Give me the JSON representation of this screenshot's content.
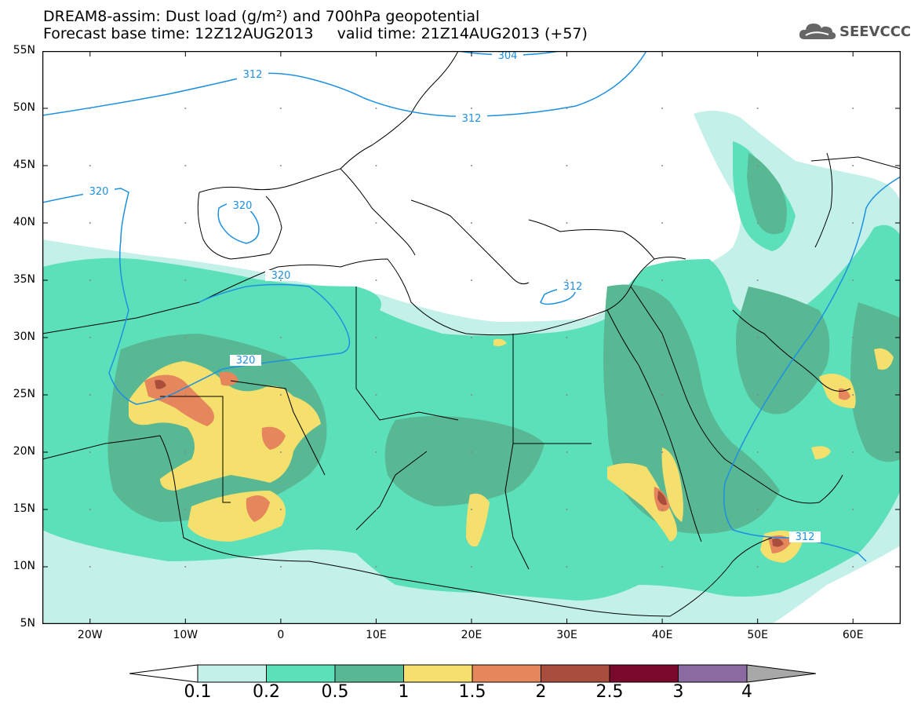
{
  "title": {
    "line1": "DREAM8-assim: Dust load (g/m²) and 700hPa geopotential",
    "line2": "Forecast base time: 12Z12AUG2013     valid time: 21Z14AUG2013 (+57)"
  },
  "logo": {
    "text": "SEEVCCC",
    "icon": "cloud-logo-icon"
  },
  "map": {
    "projection": "lat-lon",
    "lon_range": [
      -25,
      65
    ],
    "lat_range": [
      5,
      55
    ],
    "lat_ticks": [
      "55N",
      "50N",
      "45N",
      "40N",
      "35N",
      "30N",
      "25N",
      "20N",
      "15N",
      "10N",
      "5N"
    ],
    "lon_ticks": [
      "20W",
      "10W",
      "0",
      "10E",
      "20E",
      "30E",
      "40E",
      "50E",
      "60E"
    ]
  },
  "contours": {
    "labels": [
      "304",
      "312",
      "312",
      "320",
      "320",
      "320",
      "320",
      "312",
      "312"
    ]
  },
  "colorbar": {
    "levels": [
      "0.1",
      "0.2",
      "0.5",
      "1",
      "1.5",
      "2",
      "2.5",
      "3",
      "4"
    ],
    "colors": [
      "#c3f0e8",
      "#5ce0ba",
      "#58b893",
      "#f5e06e",
      "#e6865c",
      "#a94e3c",
      "#7a0a2c",
      "#8a6aa0",
      "#a8a8a8"
    ]
  },
  "palette": {
    "ocean": "#ffffff",
    "dust_light": "#c3f0e8",
    "dust_med": "#5ce0ba",
    "dust_dark": "#58b893",
    "dust_yellow": "#f5e06e",
    "dust_orange": "#e6865c",
    "dust_brown": "#a94e3c",
    "contour": "#1e90e0"
  }
}
